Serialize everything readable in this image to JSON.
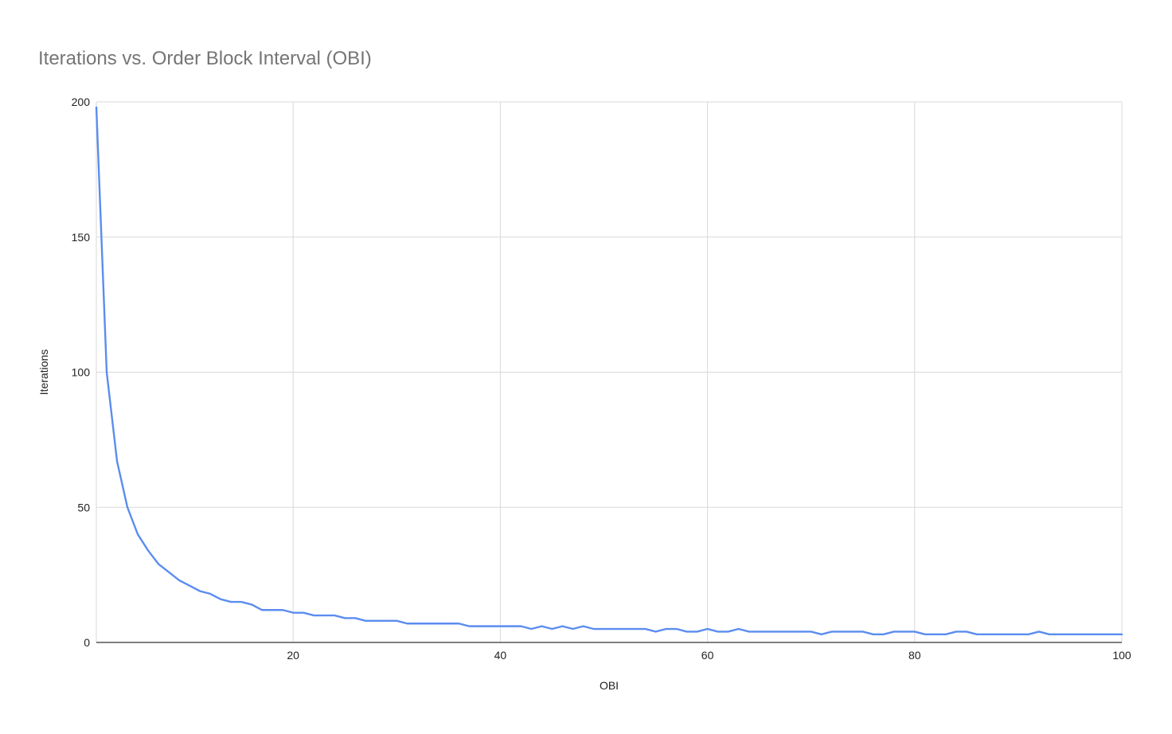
{
  "chart_data": {
    "type": "line",
    "title": "Iterations vs. Order Block Interval (OBI)",
    "xlabel": "OBI",
    "ylabel": "Iterations",
    "xlim": [
      1,
      100
    ],
    "ylim": [
      0,
      200
    ],
    "xticks": [
      20,
      40,
      60,
      80,
      100
    ],
    "yticks": [
      0,
      50,
      100,
      150,
      200
    ],
    "grid": true,
    "legend": "none",
    "colors": {
      "series": "#5b8def",
      "grid": "#d9d9d9",
      "axis": "#333333",
      "title": "#757575"
    },
    "series": [
      {
        "x": [
          1,
          2,
          3,
          4,
          5,
          6,
          7,
          8,
          9,
          10,
          11,
          12,
          13,
          14,
          15,
          16,
          17,
          18,
          19,
          20,
          21,
          22,
          23,
          24,
          25,
          26,
          27,
          28,
          29,
          30,
          31,
          32,
          33,
          34,
          35,
          36,
          37,
          38,
          39,
          40,
          41,
          42,
          43,
          44,
          45,
          46,
          47,
          48,
          49,
          50,
          51,
          52,
          53,
          54,
          55,
          56,
          57,
          58,
          59,
          60,
          61,
          62,
          63,
          64,
          65,
          66,
          67,
          68,
          69,
          70,
          71,
          72,
          73,
          74,
          75,
          76,
          77,
          78,
          79,
          80,
          81,
          82,
          83,
          84,
          85,
          86,
          87,
          88,
          89,
          90,
          91,
          92,
          93,
          94,
          95,
          96,
          97,
          98,
          99,
          100
        ],
        "values": [
          198,
          100,
          67,
          50,
          40,
          34,
          29,
          26,
          23,
          21,
          19,
          18,
          16,
          15,
          15,
          14,
          12,
          12,
          12,
          11,
          11,
          10,
          10,
          10,
          9,
          9,
          8,
          8,
          8,
          8,
          7,
          7,
          7,
          7,
          7,
          7,
          6,
          6,
          6,
          6,
          6,
          6,
          5,
          6,
          5,
          6,
          5,
          6,
          5,
          5,
          5,
          5,
          5,
          5,
          4,
          5,
          5,
          4,
          4,
          5,
          4,
          4,
          5,
          4,
          4,
          4,
          4,
          4,
          4,
          4,
          3,
          4,
          4,
          4,
          4,
          3,
          3,
          4,
          4,
          4,
          3,
          3,
          3,
          4,
          4,
          3,
          3,
          3,
          3,
          3,
          3,
          4,
          3,
          3,
          3,
          3,
          3,
          3,
          3,
          3
        ]
      }
    ]
  }
}
